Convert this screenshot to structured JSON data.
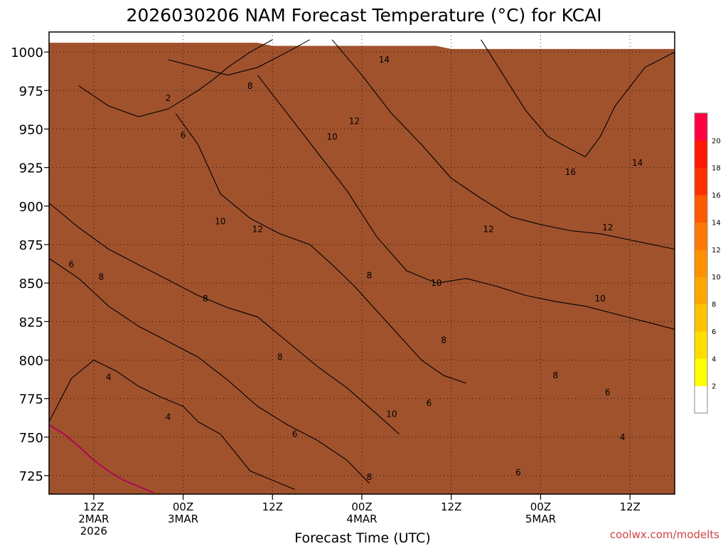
{
  "chart_data": {
    "type": "heatmap",
    "title": "2026030206 NAM Forecast Temperature (°C) for KCAI",
    "xlabel": "Forecast Time (UTC)",
    "ylabel": "Pressure (hPa)",
    "credit": "coolwx.com/modelts",
    "yaxis": {
      "ylim": [
        1013,
        713
      ],
      "ticks": [
        725,
        750,
        775,
        800,
        825,
        850,
        875,
        900,
        925,
        950,
        975,
        1000
      ]
    },
    "xaxis": {
      "xlim_hours": [
        0,
        84
      ],
      "ticks": [
        {
          "hour": 6,
          "line1": "12Z",
          "line2": "2MAR",
          "line3": "2026"
        },
        {
          "hour": 18,
          "line1": "00Z",
          "line2": "3MAR",
          "line3": ""
        },
        {
          "hour": 30,
          "line1": "12Z",
          "line2": "",
          "line3": ""
        },
        {
          "hour": 42,
          "line1": "00Z",
          "line2": "4MAR",
          "line3": ""
        },
        {
          "hour": 54,
          "line1": "12Z",
          "line2": "",
          "line3": ""
        },
        {
          "hour": 66,
          "line1": "00Z",
          "line2": "5MAR",
          "line3": ""
        },
        {
          "hour": 78,
          "line1": "12Z",
          "line2": "",
          "line3": ""
        }
      ]
    },
    "colorbar": {
      "levels": [
        2,
        4,
        6,
        8,
        10,
        12,
        14,
        16,
        18,
        20
      ],
      "colors": [
        "#ffffff",
        "#ffff00",
        "#ffdd00",
        "#ffc200",
        "#ffa600",
        "#ff9000",
        "#ff7800",
        "#ff5a00",
        "#ff3000",
        "#ff1800",
        "#ff0040"
      ],
      "labels": [
        "2",
        "4",
        "6",
        "8",
        "10",
        "12",
        "14",
        "16",
        "18",
        "20"
      ]
    },
    "ground_color": "#a0522d",
    "zero_contour_color": "#b0005a",
    "isotherms": [
      {
        "value": 4,
        "points": [
          [
            0,
            760
          ],
          [
            3,
            788
          ],
          [
            6,
            800
          ],
          [
            9,
            793
          ],
          [
            12,
            783
          ],
          [
            15,
            776
          ],
          [
            18,
            770
          ],
          [
            20,
            760
          ],
          [
            23,
            752
          ],
          [
            25,
            740
          ],
          [
            27,
            728
          ],
          [
            30,
            722
          ],
          [
            33,
            716
          ]
        ]
      },
      {
        "value": 6,
        "points": [
          [
            0,
            866
          ],
          [
            4,
            853
          ],
          [
            8,
            835
          ],
          [
            12,
            822
          ],
          [
            16,
            812
          ],
          [
            20,
            802
          ],
          [
            24,
            787
          ],
          [
            28,
            770
          ],
          [
            32,
            758
          ],
          [
            36,
            748
          ],
          [
            40,
            735
          ],
          [
            43,
            720
          ]
        ]
      },
      {
        "value": 8,
        "points": [
          [
            0,
            902
          ],
          [
            4,
            886
          ],
          [
            8,
            872
          ],
          [
            12,
            862
          ],
          [
            16,
            852
          ],
          [
            20,
            842
          ],
          [
            24,
            834
          ],
          [
            28,
            828
          ],
          [
            32,
            812
          ],
          [
            36,
            796
          ],
          [
            40,
            782
          ],
          [
            44,
            765
          ],
          [
            47,
            752
          ]
        ]
      },
      {
        "value": 10,
        "points": [
          [
            17,
            960
          ],
          [
            20,
            940
          ],
          [
            23,
            908
          ],
          [
            27,
            892
          ],
          [
            31,
            882
          ],
          [
            35,
            875
          ],
          [
            38,
            862
          ],
          [
            41,
            848
          ],
          [
            44,
            832
          ],
          [
            47,
            816
          ],
          [
            50,
            800
          ],
          [
            53,
            790
          ],
          [
            56,
            785
          ]
        ]
      },
      {
        "value": 12,
        "points": [
          [
            28,
            985
          ],
          [
            32,
            960
          ],
          [
            36,
            935
          ],
          [
            40,
            910
          ],
          [
            44,
            880
          ],
          [
            48,
            858
          ],
          [
            52,
            850
          ],
          [
            56,
            853
          ],
          [
            60,
            848
          ],
          [
            64,
            842
          ],
          [
            68,
            838
          ],
          [
            72,
            835
          ],
          [
            76,
            830
          ],
          [
            80,
            825
          ],
          [
            84,
            820
          ]
        ]
      },
      {
        "value": 14,
        "points": [
          [
            38,
            1008
          ],
          [
            42,
            985
          ],
          [
            46,
            960
          ],
          [
            50,
            940
          ],
          [
            54,
            918
          ],
          [
            58,
            905
          ],
          [
            62,
            893
          ],
          [
            66,
            888
          ],
          [
            70,
            884
          ],
          [
            74,
            882
          ],
          [
            78,
            878
          ],
          [
            84,
            872
          ]
        ]
      },
      {
        "value": 16,
        "points": [
          [
            58,
            1008
          ],
          [
            61,
            985
          ],
          [
            64,
            962
          ],
          [
            67,
            945
          ],
          [
            70,
            937
          ],
          [
            72,
            932
          ],
          [
            74,
            945
          ],
          [
            76,
            965
          ],
          [
            80,
            990
          ],
          [
            84,
            1000
          ]
        ]
      },
      {
        "value": 6,
        "points": [
          [
            4,
            978
          ],
          [
            8,
            965
          ],
          [
            12,
            958
          ],
          [
            16,
            963
          ],
          [
            20,
            975
          ],
          [
            22,
            982
          ],
          [
            24,
            990
          ],
          [
            27,
            1000
          ],
          [
            30,
            1008
          ]
        ]
      },
      {
        "value": 8,
        "points": [
          [
            16,
            995
          ],
          [
            20,
            990
          ],
          [
            24,
            985
          ],
          [
            28,
            990
          ],
          [
            32,
            1000
          ],
          [
            35,
            1008
          ]
        ]
      }
    ],
    "contour_labels": [
      {
        "text": "2",
        "hour": 16,
        "p": 970
      },
      {
        "text": "4",
        "hour": 16,
        "p": 763
      },
      {
        "text": "4",
        "hour": 8,
        "p": 789
      },
      {
        "text": "6",
        "hour": 3,
        "p": 862
      },
      {
        "text": "6",
        "hour": 18,
        "p": 946
      },
      {
        "text": "6",
        "hour": 33,
        "p": 752
      },
      {
        "text": "6",
        "hour": 51,
        "p": 772
      },
      {
        "text": "6",
        "hour": 63,
        "p": 727
      },
      {
        "text": "4",
        "hour": 77,
        "p": 750
      },
      {
        "text": "6",
        "hour": 75,
        "p": 779
      },
      {
        "text": "8",
        "hour": 7,
        "p": 854
      },
      {
        "text": "8",
        "hour": 21,
        "p": 840
      },
      {
        "text": "8",
        "hour": 31,
        "p": 802
      },
      {
        "text": "8",
        "hour": 43,
        "p": 724
      },
      {
        "text": "8",
        "hour": 43,
        "p": 855
      },
      {
        "text": "8",
        "hour": 53,
        "p": 813
      },
      {
        "text": "8",
        "hour": 68,
        "p": 790
      },
      {
        "text": "8",
        "hour": 27,
        "p": 978
      },
      {
        "text": "10",
        "hour": 23,
        "p": 890
      },
      {
        "text": "10",
        "hour": 38,
        "p": 945
      },
      {
        "text": "10",
        "hour": 46,
        "p": 765
      },
      {
        "text": "10",
        "hour": 52,
        "p": 850
      },
      {
        "text": "10",
        "hour": 74,
        "p": 840
      },
      {
        "text": "12",
        "hour": 28,
        "p": 885
      },
      {
        "text": "12",
        "hour": 41,
        "p": 955
      },
      {
        "text": "12",
        "hour": 59,
        "p": 885
      },
      {
        "text": "12",
        "hour": 75,
        "p": 886
      },
      {
        "text": "14",
        "hour": 45,
        "p": 995
      },
      {
        "text": "14",
        "hour": 79,
        "p": 928
      },
      {
        "text": "16",
        "hour": 70,
        "p": 922
      }
    ],
    "field_anchors": {
      "hours": [
        0,
        6,
        12,
        18,
        24,
        30,
        36,
        42,
        48,
        54,
        60,
        66,
        72,
        78,
        84
      ],
      "pressures": [
        713,
        750,
        800,
        850,
        900,
        950,
        1000,
        1013
      ],
      "values": [
        [
          -1,
          0,
          1,
          2.5,
          3.5,
          4.5,
          5.5,
          6.5,
          6.5,
          6,
          5,
          4.5,
          4,
          3.5,
          3
        ],
        [
          1,
          2,
          3,
          4.5,
          5.5,
          6.5,
          7.5,
          8.5,
          7.5,
          6.5,
          6,
          5.5,
          5,
          4.5,
          4
        ],
        [
          3,
          4.5,
          5.5,
          6.5,
          7.5,
          8.5,
          9.5,
          11,
          9.5,
          8.5,
          8,
          7.5,
          7,
          6.5,
          6
        ],
        [
          5.5,
          6.5,
          7.5,
          8,
          9,
          10.5,
          11,
          11,
          10.5,
          10,
          10,
          10,
          10,
          9.5,
          9
        ],
        [
          6.5,
          7.5,
          8,
          9,
          11,
          13,
          12.5,
          12.5,
          12.5,
          12.5,
          12.5,
          12.5,
          12.5,
          12,
          12
        ],
        [
          4,
          3,
          5,
          6,
          8,
          14,
          12,
          13.5,
          14.5,
          14.5,
          15,
          16,
          17,
          15,
          15
        ],
        [
          3,
          2,
          3,
          4,
          6,
          9,
          12,
          14,
          15,
          15.5,
          16.5,
          20,
          18,
          16,
          16
        ],
        [
          3,
          2,
          3,
          4,
          6,
          9,
          12,
          14,
          15,
          15.5,
          16.5,
          20,
          18,
          16,
          16
        ]
      ]
    }
  }
}
